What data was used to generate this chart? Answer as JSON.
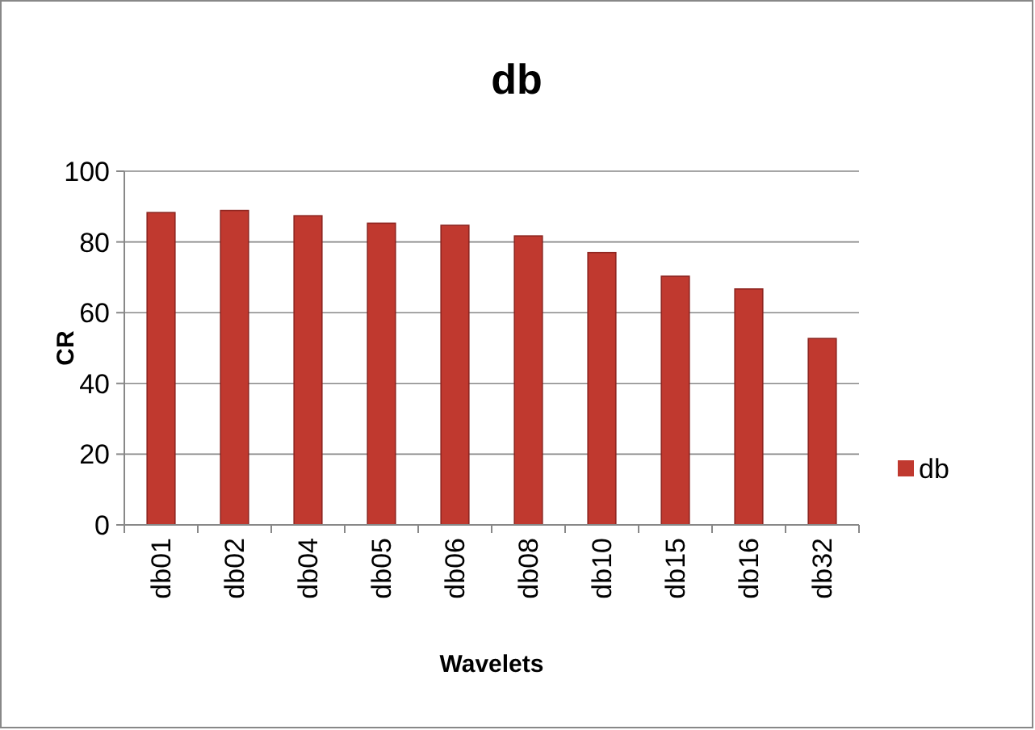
{
  "chart_data": {
    "type": "bar",
    "title": "db",
    "xlabel": "Wavelets",
    "ylabel": "CR",
    "categories": [
      "db01",
      "db02",
      "db04",
      "db05",
      "db06",
      "db08",
      "db10",
      "db15",
      "db16",
      "db32"
    ],
    "series": [
      {
        "name": "db",
        "color": "#c0392f",
        "values": [
          88.3,
          88.9,
          87.4,
          85.3,
          84.7,
          81.7,
          77,
          70.3,
          66.7,
          52.7
        ]
      }
    ],
    "ylim": [
      0,
      100
    ],
    "yticks": [
      0,
      20,
      40,
      60,
      80,
      100
    ],
    "grid": "y",
    "legend": "right"
  }
}
